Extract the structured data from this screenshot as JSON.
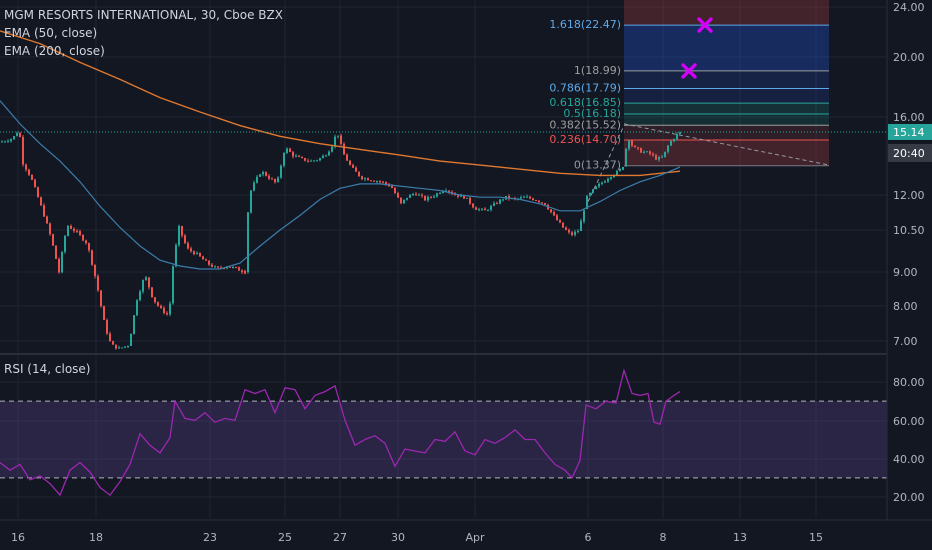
{
  "header": {
    "title": "MGM RESORTS INTERNATIONAL, 30, Cboe BZX",
    "ema50_label": "EMA (50, close)",
    "ema200_label": "EMA (200, close)"
  },
  "rsi_panel": {
    "label": "RSI (14, close)"
  },
  "colors": {
    "background": "#131722",
    "up": "#26a69a",
    "down": "#ef5350",
    "ema50": "#3b7dab",
    "ema200": "#e0782f",
    "rsi": "#9c27b0",
    "price_label": "#26a69a",
    "time_label": "#363a45"
  },
  "chart_data": [
    {
      "type": "candlestick",
      "title": "MGM RESORTS INTERNATIONAL, 30, Cboe BZX",
      "x_ticks": [
        "16",
        "18",
        "23",
        "25",
        "27",
        "30",
        "Apr",
        "6",
        "8",
        "13",
        "15"
      ],
      "y_ticks": [
        "24.00",
        "20.00",
        "16.00",
        "12.00",
        "10.50",
        "9.00",
        "8.00",
        "7.00"
      ],
      "y_scale": "log",
      "ylim": [
        6.8,
        24.0
      ],
      "last_price": "15.14",
      "time_label": "20:40",
      "price_path": [
        [
          0,
          14.6
        ],
        [
          12,
          14.8
        ],
        [
          18,
          15.3
        ],
        [
          22,
          13.5
        ],
        [
          30,
          12.8
        ],
        [
          40,
          11.5
        ],
        [
          50,
          10.2
        ],
        [
          58,
          9.0
        ],
        [
          66,
          10.7
        ],
        [
          76,
          10.4
        ],
        [
          86,
          10.0
        ],
        [
          96,
          8.6
        ],
        [
          104,
          7.4
        ],
        [
          110,
          6.9
        ],
        [
          118,
          6.8
        ],
        [
          128,
          6.9
        ],
        [
          136,
          8.2
        ],
        [
          144,
          8.9
        ],
        [
          152,
          8.2
        ],
        [
          160,
          7.9
        ],
        [
          168,
          7.7
        ],
        [
          172,
          9.2
        ],
        [
          178,
          10.6
        ],
        [
          186,
          9.8
        ],
        [
          196,
          9.6
        ],
        [
          206,
          9.3
        ],
        [
          216,
          9.1
        ],
        [
          226,
          9.2
        ],
        [
          236,
          9.1
        ],
        [
          244,
          9.0
        ],
        [
          248,
          12.0
        ],
        [
          254,
          12.6
        ],
        [
          260,
          13.1
        ],
        [
          268,
          12.8
        ],
        [
          276,
          12.5
        ],
        [
          284,
          14.3
        ],
        [
          292,
          13.9
        ],
        [
          300,
          13.7
        ],
        [
          310,
          13.6
        ],
        [
          318,
          13.7
        ],
        [
          326,
          14.0
        ],
        [
          332,
          14.5
        ],
        [
          336,
          15.2
        ],
        [
          342,
          14.0
        ],
        [
          350,
          13.3
        ],
        [
          360,
          12.8
        ],
        [
          370,
          12.7
        ],
        [
          380,
          12.6
        ],
        [
          390,
          12.4
        ],
        [
          400,
          11.6
        ],
        [
          406,
          11.9
        ],
        [
          414,
          12.1
        ],
        [
          424,
          11.8
        ],
        [
          434,
          12.0
        ],
        [
          444,
          12.3
        ],
        [
          454,
          12.0
        ],
        [
          464,
          11.9
        ],
        [
          474,
          11.4
        ],
        [
          484,
          11.3
        ],
        [
          494,
          11.6
        ],
        [
          504,
          11.9
        ],
        [
          514,
          11.8
        ],
        [
          524,
          11.9
        ],
        [
          534,
          11.8
        ],
        [
          544,
          11.6
        ],
        [
          554,
          11.0
        ],
        [
          562,
          10.6
        ],
        [
          570,
          10.3
        ],
        [
          578,
          10.5
        ],
        [
          586,
          11.9
        ],
        [
          594,
          12.3
        ],
        [
          602,
          12.6
        ],
        [
          610,
          12.9
        ],
        [
          618,
          13.1
        ],
        [
          624,
          13.5
        ],
        [
          626,
          15.0
        ],
        [
          632,
          14.3
        ],
        [
          640,
          14.1
        ],
        [
          648,
          14.0
        ],
        [
          656,
          13.7
        ],
        [
          662,
          13.8
        ],
        [
          668,
          14.5
        ],
        [
          676,
          15.0
        ],
        [
          680,
          15.14
        ]
      ],
      "ema50": [
        [
          0,
          17.0
        ],
        [
          20,
          15.6
        ],
        [
          40,
          14.5
        ],
        [
          60,
          13.6
        ],
        [
          80,
          12.6
        ],
        [
          100,
          11.5
        ],
        [
          120,
          10.6
        ],
        [
          140,
          9.9
        ],
        [
          160,
          9.4
        ],
        [
          180,
          9.2
        ],
        [
          200,
          9.1
        ],
        [
          220,
          9.1
        ],
        [
          240,
          9.3
        ],
        [
          260,
          9.9
        ],
        [
          280,
          10.5
        ],
        [
          300,
          11.1
        ],
        [
          320,
          11.8
        ],
        [
          340,
          12.3
        ],
        [
          360,
          12.5
        ],
        [
          380,
          12.5
        ],
        [
          400,
          12.4
        ],
        [
          420,
          12.3
        ],
        [
          440,
          12.2
        ],
        [
          460,
          12.0
        ],
        [
          480,
          11.9
        ],
        [
          500,
          11.9
        ],
        [
          520,
          11.8
        ],
        [
          540,
          11.6
        ],
        [
          560,
          11.3
        ],
        [
          580,
          11.3
        ],
        [
          600,
          11.7
        ],
        [
          620,
          12.2
        ],
        [
          640,
          12.6
        ],
        [
          660,
          12.9
        ],
        [
          680,
          13.3
        ]
      ],
      "ema200": [
        [
          0,
          22.0
        ],
        [
          40,
          21.0
        ],
        [
          80,
          19.6
        ],
        [
          120,
          18.4
        ],
        [
          160,
          17.2
        ],
        [
          200,
          16.3
        ],
        [
          240,
          15.5
        ],
        [
          280,
          14.9
        ],
        [
          320,
          14.5
        ],
        [
          360,
          14.2
        ],
        [
          400,
          13.9
        ],
        [
          440,
          13.6
        ],
        [
          480,
          13.4
        ],
        [
          520,
          13.2
        ],
        [
          560,
          13.0
        ],
        [
          600,
          12.9
        ],
        [
          640,
          12.9
        ],
        [
          680,
          13.1
        ]
      ]
    },
    {
      "type": "fibonacci",
      "levels": [
        {
          "ratio": "0",
          "price": 13.37,
          "label": "0(13.37)"
        },
        {
          "ratio": "0.236",
          "price": 14.7,
          "label": "0.236(14.70)"
        },
        {
          "ratio": "0.382",
          "price": 15.52,
          "label": "0.382(15.52)"
        },
        {
          "ratio": "0.5",
          "price": 16.18,
          "label": "0.5(16.18)"
        },
        {
          "ratio": "0.618",
          "price": 16.85,
          "label": "0.618(16.85)"
        },
        {
          "ratio": "0.786",
          "price": 17.79,
          "label": "0.786(17.79)"
        },
        {
          "ratio": "1",
          "price": 18.99,
          "label": "1(18.99)"
        },
        {
          "ratio": "1.618",
          "price": 22.47,
          "label": "1.618(22.47)"
        }
      ],
      "markers": [
        {
          "price": 18.99
        },
        {
          "price": 22.47
        }
      ]
    },
    {
      "type": "line",
      "title": "RSI (14, close)",
      "y_ticks": [
        "80.00",
        "60.00",
        "40.00",
        "20.00"
      ],
      "ylim": [
        10,
        92
      ],
      "bands": [
        30,
        70
      ],
      "values": [
        [
          0,
          38
        ],
        [
          10,
          34
        ],
        [
          20,
          37
        ],
        [
          30,
          29
        ],
        [
          40,
          31
        ],
        [
          50,
          27
        ],
        [
          60,
          21
        ],
        [
          70,
          34
        ],
        [
          80,
          38
        ],
        [
          90,
          33
        ],
        [
          100,
          25
        ],
        [
          110,
          21
        ],
        [
          120,
          28
        ],
        [
          130,
          37
        ],
        [
          140,
          53
        ],
        [
          150,
          47
        ],
        [
          160,
          43
        ],
        [
          170,
          51
        ],
        [
          175,
          70
        ],
        [
          185,
          61
        ],
        [
          195,
          60
        ],
        [
          205,
          64
        ],
        [
          215,
          59
        ],
        [
          225,
          61
        ],
        [
          235,
          60
        ],
        [
          245,
          76
        ],
        [
          255,
          74
        ],
        [
          265,
          76
        ],
        [
          275,
          64
        ],
        [
          285,
          77
        ],
        [
          295,
          76
        ],
        [
          305,
          66
        ],
        [
          315,
          73
        ],
        [
          325,
          75
        ],
        [
          335,
          78
        ],
        [
          345,
          60
        ],
        [
          355,
          47
        ],
        [
          365,
          50
        ],
        [
          375,
          52
        ],
        [
          385,
          48
        ],
        [
          395,
          36
        ],
        [
          405,
          45
        ],
        [
          415,
          44
        ],
        [
          425,
          43
        ],
        [
          435,
          50
        ],
        [
          445,
          49
        ],
        [
          455,
          54
        ],
        [
          465,
          44
        ],
        [
          475,
          42
        ],
        [
          485,
          50
        ],
        [
          495,
          48
        ],
        [
          505,
          51
        ],
        [
          515,
          55
        ],
        [
          525,
          50
        ],
        [
          535,
          50
        ],
        [
          545,
          43
        ],
        [
          555,
          37
        ],
        [
          565,
          34
        ],
        [
          572,
          30
        ],
        [
          580,
          39
        ],
        [
          586,
          68
        ],
        [
          596,
          66
        ],
        [
          606,
          70
        ],
        [
          616,
          69
        ],
        [
          624,
          86
        ],
        [
          632,
          74
        ],
        [
          640,
          73
        ],
        [
          648,
          74
        ],
        [
          654,
          59
        ],
        [
          660,
          58
        ],
        [
          666,
          70
        ],
        [
          674,
          73
        ],
        [
          680,
          75
        ]
      ]
    }
  ]
}
